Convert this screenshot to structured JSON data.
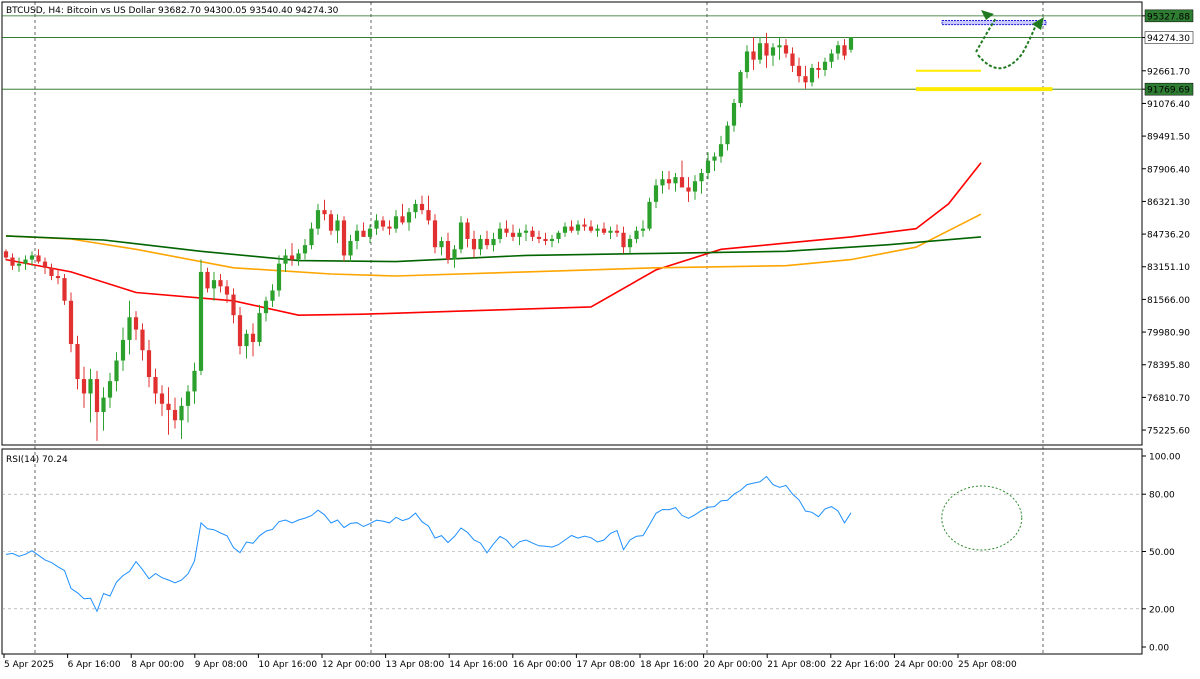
{
  "chart_data": [
    {
      "type": "candlestick",
      "title": "BTCUSD, H4:  Bitcoin vs US Dollar  93682.70 94300.05 93540.40 94274.30",
      "ylim": [
        74500,
        96000
      ],
      "y_ticks": [
        "95327.88",
        "94274.30",
        "92661.70",
        "91769.69",
        "91076.40",
        "89491.50",
        "87906.40",
        "86321.30",
        "84736.20",
        "83151.10",
        "81566.00",
        "79980.90",
        "78395.80",
        "76810.70",
        "75225.60"
      ],
      "y_tick_values": [
        95327.88,
        94274.3,
        92661.7,
        91769.69,
        91076.4,
        89491.5,
        87906.4,
        86321.3,
        84736.2,
        83151.1,
        81566.0,
        79980.9,
        78395.8,
        76810.7,
        75225.6
      ],
      "highlighted_prices": [
        {
          "label": "95327.88",
          "value": 95327.88,
          "color": "#2e7d32"
        },
        {
          "label": "94274.30",
          "value": 94274.3,
          "color": "#ffffff"
        },
        {
          "label": "91769.69",
          "value": 91769.69,
          "color": "#2e7d32"
        }
      ],
      "x_labels": [
        "5 Apr 2025",
        "6 Apr 16:00",
        "8 Apr 00:00",
        "9 Apr 08:00",
        "10 Apr 16:00",
        "12 Apr 00:00",
        "13 Apr 08:00",
        "14 Apr 16:00",
        "16 Apr 00:00",
        "17 Apr 08:00",
        "18 Apr 16:00",
        "20 Apr 00:00",
        "21 Apr 08:00",
        "22 Apr 16:00",
        "24 Apr 00:00",
        "25 Apr 08:00"
      ],
      "candles_ohlc": [
        [
          83900,
          84000,
          83450,
          83600
        ],
        [
          83600,
          83800,
          83000,
          83200
        ],
        [
          83200,
          83600,
          82900,
          83300
        ],
        [
          83300,
          83700,
          83000,
          83500
        ],
        [
          83500,
          83900,
          83200,
          83700
        ],
        [
          83700,
          84000,
          83300,
          83400
        ],
        [
          83400,
          83600,
          82800,
          83100
        ],
        [
          83100,
          83300,
          82500,
          82700
        ],
        [
          82700,
          83000,
          82300,
          82600
        ],
        [
          82600,
          82800,
          81300,
          81500
        ],
        [
          81500,
          81900,
          79000,
          79400
        ],
        [
          79400,
          79800,
          77200,
          77700
        ],
        [
          77700,
          78300,
          76300,
          77000
        ],
        [
          77000,
          78200,
          75600,
          77700
        ],
        [
          77700,
          78100,
          74700,
          76100
        ],
        [
          76100,
          77300,
          75200,
          76800
        ],
        [
          76800,
          78000,
          76300,
          77600
        ],
        [
          77600,
          79000,
          77100,
          78600
        ],
        [
          78600,
          80200,
          78100,
          79600
        ],
        [
          79600,
          81500,
          78900,
          80700
        ],
        [
          80700,
          81000,
          79600,
          80100
        ],
        [
          80100,
          80400,
          78600,
          79100
        ],
        [
          79100,
          79600,
          77300,
          77800
        ],
        [
          77800,
          78200,
          76500,
          77000
        ],
        [
          77000,
          77400,
          75900,
          76500
        ],
        [
          76500,
          77300,
          75000,
          76200
        ],
        [
          76200,
          76800,
          75300,
          75700
        ],
        [
          75700,
          76800,
          74800,
          76400
        ],
        [
          76400,
          77400,
          75600,
          77100
        ],
        [
          77100,
          78500,
          76500,
          78100
        ],
        [
          78100,
          83500,
          77900,
          82900
        ],
        [
          82900,
          83100,
          81900,
          82100
        ],
        [
          82100,
          82900,
          81500,
          82500
        ],
        [
          82500,
          82800,
          81900,
          82200
        ],
        [
          82200,
          82500,
          81400,
          81800
        ],
        [
          81800,
          82100,
          80400,
          80800
        ],
        [
          80800,
          81200,
          78900,
          79300
        ],
        [
          79300,
          80100,
          78700,
          79900
        ],
        [
          79900,
          80400,
          78800,
          79500
        ],
        [
          79500,
          81300,
          79300,
          80900
        ],
        [
          80900,
          81700,
          80500,
          81500
        ],
        [
          81500,
          82300,
          81200,
          82000
        ],
        [
          82000,
          83700,
          81700,
          83300
        ],
        [
          83300,
          84000,
          82900,
          83700
        ],
        [
          83700,
          84300,
          83200,
          83500
        ],
        [
          83500,
          84000,
          83200,
          83800
        ],
        [
          83800,
          84500,
          83500,
          84200
        ],
        [
          84200,
          85300,
          84000,
          85000
        ],
        [
          85000,
          86200,
          84700,
          85900
        ],
        [
          85900,
          86400,
          85400,
          85700
        ],
        [
          85700,
          85900,
          84700,
          84900
        ],
        [
          84900,
          85700,
          84300,
          85400
        ],
        [
          85400,
          85600,
          83400,
          83700
        ],
        [
          83700,
          84700,
          83400,
          84400
        ],
        [
          84400,
          85200,
          84000,
          84900
        ],
        [
          84900,
          85300,
          84600,
          84600
        ],
        [
          84600,
          85200,
          84300,
          85000
        ],
        [
          85000,
          85700,
          84700,
          85400
        ],
        [
          85400,
          85600,
          84900,
          85100
        ],
        [
          85100,
          85400,
          84700,
          85000
        ],
        [
          85000,
          85900,
          84800,
          85600
        ],
        [
          85600,
          86200,
          85200,
          85300
        ],
        [
          85300,
          86000,
          84900,
          85800
        ],
        [
          85800,
          86400,
          85500,
          86200
        ],
        [
          86200,
          86600,
          85700,
          85900
        ],
        [
          85900,
          86600,
          85200,
          85400
        ],
        [
          85400,
          85700,
          83800,
          84100
        ],
        [
          84100,
          84600,
          83700,
          84400
        ],
        [
          84400,
          84800,
          83300,
          83500
        ],
        [
          83500,
          84200,
          83100,
          84000
        ],
        [
          84000,
          85600,
          83800,
          85300
        ],
        [
          85300,
          85500,
          84100,
          84500
        ],
        [
          84500,
          84900,
          83600,
          84000
        ],
        [
          84000,
          84700,
          83700,
          84500
        ],
        [
          84500,
          84900,
          84000,
          84200
        ],
        [
          84200,
          84800,
          83900,
          84500
        ],
        [
          84500,
          85300,
          84300,
          85000
        ],
        [
          85000,
          85400,
          84600,
          84800
        ],
        [
          84800,
          85200,
          84400,
          84600
        ],
        [
          84600,
          85000,
          84200,
          84800
        ],
        [
          84800,
          85200,
          84400,
          84900
        ],
        [
          84900,
          85100,
          84400,
          84600
        ],
        [
          84600,
          84900,
          84300,
          84500
        ],
        [
          84500,
          84800,
          84200,
          84400
        ],
        [
          84400,
          84700,
          84100,
          84500
        ],
        [
          84500,
          84900,
          84300,
          84800
        ],
        [
          84800,
          85300,
          84600,
          85100
        ],
        [
          85100,
          85400,
          84800,
          84900
        ],
        [
          84900,
          85400,
          84700,
          85200
        ],
        [
          85200,
          85500,
          84900,
          85100
        ],
        [
          85100,
          85400,
          84800,
          84900
        ],
        [
          84900,
          85200,
          84600,
          85000
        ],
        [
          85000,
          85300,
          84700,
          84800
        ],
        [
          84800,
          85100,
          84500,
          84900
        ],
        [
          84900,
          85200,
          84600,
          84800
        ],
        [
          84800,
          85100,
          83800,
          84100
        ],
        [
          84100,
          84700,
          83800,
          84500
        ],
        [
          84500,
          85100,
          84300,
          84900
        ],
        [
          84900,
          85400,
          84600,
          85000
        ],
        [
          85000,
          86500,
          84900,
          86300
        ],
        [
          86300,
          87400,
          86000,
          87100
        ],
        [
          87100,
          87800,
          86700,
          87400
        ],
        [
          87400,
          87800,
          86900,
          87200
        ],
        [
          87200,
          87700,
          86800,
          87500
        ],
        [
          87500,
          88300,
          87100,
          87000
        ],
        [
          87000,
          87500,
          86300,
          86800
        ],
        [
          86800,
          87600,
          86400,
          87300
        ],
        [
          87300,
          87900,
          86700,
          87700
        ],
        [
          87700,
          88700,
          87400,
          88300
        ],
        [
          88300,
          88700,
          87800,
          88500
        ],
        [
          88500,
          89500,
          88200,
          89100
        ],
        [
          89100,
          90200,
          88800,
          90000
        ],
        [
          90000,
          91300,
          89700,
          91100
        ],
        [
          91100,
          92700,
          90900,
          92600
        ],
        [
          92600,
          93900,
          92300,
          93600
        ],
        [
          93600,
          94300,
          92700,
          93200
        ],
        [
          93200,
          94300,
          93000,
          94000
        ],
        [
          94000,
          94500,
          92800,
          93400
        ],
        [
          93400,
          94000,
          92900,
          93800
        ],
        [
          93800,
          94300,
          93200,
          93900
        ],
        [
          93900,
          94200,
          93300,
          93500
        ],
        [
          93500,
          93800,
          92600,
          92900
        ],
        [
          92900,
          93300,
          92100,
          92400
        ],
        [
          92400,
          92900,
          91800,
          92100
        ],
        [
          92100,
          93000,
          91900,
          92800
        ],
        [
          92800,
          93100,
          92300,
          92700
        ],
        [
          92700,
          93300,
          92400,
          93100
        ],
        [
          93100,
          93700,
          92800,
          93500
        ],
        [
          93500,
          94100,
          93200,
          93900
        ],
        [
          93900,
          94200,
          93200,
          93400
        ],
        [
          93682.7,
          94300.05,
          93540.4,
          94274.3
        ]
      ],
      "moving_averages": [
        {
          "color": "#ff0000",
          "points": [
            [
              0,
              83500
            ],
            [
              10,
              82900
            ],
            [
              20,
              81900
            ],
            [
              35,
              81500
            ],
            [
              45,
              80800
            ],
            [
              55,
              80850
            ],
            [
              70,
              81000
            ],
            [
              90,
              81200
            ],
            [
              100,
              83000
            ],
            [
              110,
              84000
            ],
            [
              120,
              84300
            ],
            [
              130,
              84600
            ],
            [
              140,
              85000
            ],
            [
              145,
              86200
            ],
            [
              150,
              88200
            ]
          ]
        },
        {
          "color": "#ffa500",
          "points": [
            [
              0,
              84650
            ],
            [
              10,
              84500
            ],
            [
              20,
              84000
            ],
            [
              35,
              83100
            ],
            [
              50,
              82800
            ],
            [
              60,
              82700
            ],
            [
              80,
              82900
            ],
            [
              100,
              83100
            ],
            [
              120,
              83200
            ],
            [
              130,
              83500
            ],
            [
              140,
              84100
            ],
            [
              145,
              84900
            ],
            [
              150,
              85700
            ]
          ]
        },
        {
          "color": "#006400",
          "points": [
            [
              0,
              84650
            ],
            [
              15,
              84450
            ],
            [
              30,
              83900
            ],
            [
              45,
              83450
            ],
            [
              60,
              83400
            ],
            [
              80,
              83700
            ],
            [
              100,
              83800
            ],
            [
              120,
              83900
            ],
            [
              135,
              84200
            ],
            [
              150,
              84600
            ]
          ]
        }
      ],
      "annotations": [
        {
          "type": "hline",
          "value": 92661.7,
          "color": "#ffeb00",
          "from_index": 140,
          "to_index": 150
        },
        {
          "type": "hline",
          "value": 91769.69,
          "color": "#ffeb00",
          "from_index": 140,
          "to_index": 161
        },
        {
          "type": "zone",
          "value_low": 94900,
          "value_high": 95100,
          "color": "#0000cc",
          "from_index": 144,
          "to_index": 160
        }
      ]
    },
    {
      "type": "line",
      "title": "RSI(14) 70.24",
      "ylim": [
        0,
        100
      ],
      "y_ticks": [
        "100.00",
        "80.00",
        "50.00",
        "20.00",
        "0.00"
      ],
      "y_tick_values": [
        100,
        80,
        50,
        20,
        0
      ],
      "series": [
        {
          "name": "RSI(14)",
          "color": "#1e90ff",
          "values": [
            48.5,
            49.0,
            47.5,
            48.6,
            50.4,
            48.0,
            45.6,
            44.2,
            42.0,
            40.0,
            30.7,
            28.4,
            25.3,
            25.5,
            18.7,
            28.0,
            26.7,
            34.0,
            37.4,
            39.6,
            44.7,
            40.5,
            35.7,
            38.5,
            36.3,
            35.1,
            33.6,
            35.0,
            38.3,
            45.0,
            65.0,
            61.9,
            61.4,
            59.7,
            58.2,
            52.0,
            49.4,
            55.0,
            54.3,
            58.2,
            60.7,
            61.6,
            65.6,
            66.5,
            64.9,
            66.5,
            67.5,
            68.8,
            71.7,
            69.2,
            64.9,
            66.5,
            62.5,
            64.7,
            65.1,
            63.1,
            64.6,
            66.4,
            65.9,
            65.0,
            67.9,
            66.2,
            67.3,
            70.1,
            65.6,
            63.3,
            57.0,
            58.3,
            54.7,
            57.9,
            62.3,
            60.0,
            56.0,
            54.4,
            49.3,
            54.0,
            57.9,
            56.0,
            52.0,
            55.1,
            56.0,
            54.4,
            53.0,
            52.8,
            52.3,
            53.6,
            56.0,
            58.4,
            57.0,
            58.0,
            57.2,
            55.0,
            56.0,
            59.5,
            61.0,
            51.0,
            56.0,
            58.0,
            58.3,
            64.0,
            70.0,
            72.0,
            71.9,
            73.0,
            68.9,
            67.4,
            69.2,
            71.5,
            73.2,
            73.5,
            76.5,
            76.8,
            80.0,
            82.0,
            85.0,
            85.8,
            86.5,
            89.3,
            85.0,
            83.6,
            84.6,
            80.1,
            77.0,
            71.2,
            70.5,
            68.2,
            72.3,
            73.5,
            71.2,
            65.0,
            70.24
          ]
        }
      ],
      "annotations": [
        {
          "type": "ellipse",
          "color": "#2e8b2e",
          "from_index": 143,
          "to_index": 156
        }
      ]
    }
  ]
}
